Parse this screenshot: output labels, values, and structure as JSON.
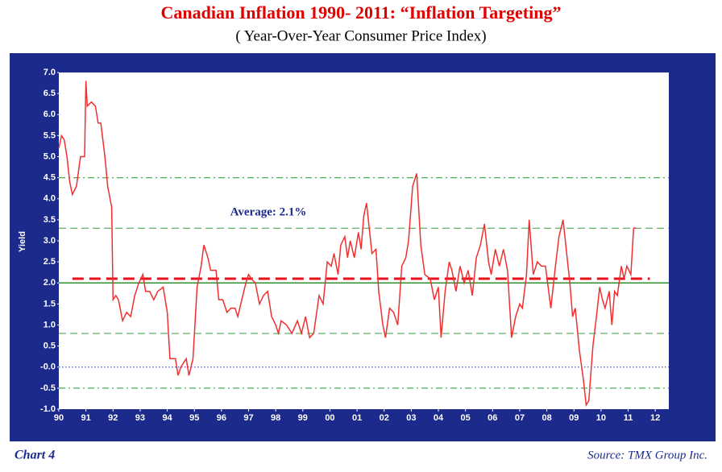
{
  "chart_data": {
    "type": "line",
    "title": "Canadian Inflation 1990- 2011: “Inflation Targeting”",
    "subtitle": "( Year-Over-Year Consumer Price Index)",
    "y_label": "Yield",
    "chart_label": "Chart 4",
    "source": "Source: TMX Group Inc.",
    "xlim": [
      1990,
      2012.5
    ],
    "ylim": [
      -1,
      7
    ],
    "xticks": [
      {
        "value": 1990,
        "label": "90"
      },
      {
        "value": 1991,
        "label": "91"
      },
      {
        "value": 1992,
        "label": "92"
      },
      {
        "value": 1993,
        "label": "93"
      },
      {
        "value": 1994,
        "label": "94"
      },
      {
        "value": 1995,
        "label": "95"
      },
      {
        "value": 1996,
        "label": "96"
      },
      {
        "value": 1997,
        "label": "97"
      },
      {
        "value": 1998,
        "label": "98"
      },
      {
        "value": 1999,
        "label": "99"
      },
      {
        "value": 2000,
        "label": "00"
      },
      {
        "value": 2001,
        "label": "01"
      },
      {
        "value": 2002,
        "label": "02"
      },
      {
        "value": 2003,
        "label": "03"
      },
      {
        "value": 2004,
        "label": "04"
      },
      {
        "value": 2005,
        "label": "05"
      },
      {
        "value": 2006,
        "label": "06"
      },
      {
        "value": 2007,
        "label": "07"
      },
      {
        "value": 2008,
        "label": "08"
      },
      {
        "value": 2009,
        "label": "09"
      },
      {
        "value": 2010,
        "label": "10"
      },
      {
        "value": 2011,
        "label": "11"
      },
      {
        "value": 2012,
        "label": "12"
      }
    ],
    "yticks": [
      {
        "value": 7,
        "label": "7.0"
      },
      {
        "value": 6.5,
        "label": "6.5"
      },
      {
        "value": 6,
        "label": "6.0"
      },
      {
        "value": 5.5,
        "label": "5.5"
      },
      {
        "value": 5,
        "label": "5.0"
      },
      {
        "value": 4.5,
        "label": "4.5"
      },
      {
        "value": 4,
        "label": "4.0"
      },
      {
        "value": 3.5,
        "label": "3.5"
      },
      {
        "value": 3,
        "label": "3.0"
      },
      {
        "value": 2.5,
        "label": "2.5"
      },
      {
        "value": 2,
        "label": "2.0"
      },
      {
        "value": 1.5,
        "label": "1.5"
      },
      {
        "value": 1,
        "label": "1.0"
      },
      {
        "value": 0.5,
        "label": "0.5"
      },
      {
        "value": 0,
        "label": "-0.0"
      },
      {
        "value": -0.5,
        "label": "-0.5"
      },
      {
        "value": -1,
        "label": "-1.0"
      }
    ],
    "reference_lines": [
      {
        "value": 4.5,
        "color": "#4caf50",
        "style": "dashdot"
      },
      {
        "value": 3.3,
        "color": "#4caf50",
        "style": "dashed"
      },
      {
        "value": 2.0,
        "color": "#2e8b2e",
        "style": "solid"
      },
      {
        "value": 0.8,
        "color": "#4caf50",
        "style": "dashed"
      },
      {
        "value": 0,
        "color": "#3355ff",
        "style": "dotted"
      },
      {
        "value": -0.5,
        "color": "#4caf50",
        "style": "dashdot"
      },
      {
        "value": 2.1,
        "color": "#e8101a",
        "style": "bigdash",
        "label": "Average: 2.1%",
        "xrange": [
          1990.5,
          2011.8
        ]
      }
    ],
    "x": [
      1990.0,
      1990.1,
      1990.2,
      1990.3,
      1990.4,
      1990.5,
      1990.65,
      1990.8,
      1990.95,
      1991.0,
      1991.05,
      1991.2,
      1991.35,
      1991.45,
      1991.55,
      1991.7,
      1991.8,
      1991.95,
      1992.0,
      1992.1,
      1992.2,
      1992.35,
      1992.5,
      1992.65,
      1992.8,
      1992.95,
      1993.1,
      1993.2,
      1993.35,
      1993.5,
      1993.65,
      1993.85,
      1994.0,
      1994.1,
      1994.3,
      1994.4,
      1994.5,
      1994.7,
      1994.8,
      1994.95,
      1995.1,
      1995.25,
      1995.35,
      1995.5,
      1995.6,
      1995.8,
      1995.9,
      1996.05,
      1996.2,
      1996.35,
      1996.5,
      1996.6,
      1996.75,
      1996.9,
      1997.0,
      1997.1,
      1997.25,
      1997.4,
      1997.55,
      1997.7,
      1997.85,
      1998.0,
      1998.1,
      1998.2,
      1998.4,
      1998.6,
      1998.8,
      1998.95,
      1999.1,
      1999.25,
      1999.4,
      1999.6,
      1999.75,
      1999.9,
      2000.05,
      2000.15,
      2000.3,
      2000.4,
      2000.55,
      2000.65,
      2000.75,
      2000.9,
      2001.05,
      2001.15,
      2001.25,
      2001.35,
      2001.45,
      2001.55,
      2001.7,
      2001.8,
      2001.95,
      2002.05,
      2002.2,
      2002.35,
      2002.5,
      2002.65,
      2002.8,
      2002.9,
      2003.05,
      2003.15,
      2003.2,
      2003.35,
      2003.5,
      2003.7,
      2003.85,
      2004.0,
      2004.1,
      2004.25,
      2004.4,
      2004.5,
      2004.65,
      2004.8,
      2004.95,
      2005.1,
      2005.25,
      2005.4,
      2005.55,
      2005.7,
      2005.85,
      2005.95,
      2006.1,
      2006.25,
      2006.4,
      2006.55,
      2006.7,
      2006.85,
      2007.0,
      2007.1,
      2007.25,
      2007.35,
      2007.5,
      2007.65,
      2007.8,
      2007.95,
      2008.15,
      2008.3,
      2008.45,
      2008.6,
      2008.75,
      2008.85,
      2008.95,
      2009.05,
      2009.2,
      2009.35,
      2009.45,
      2009.55,
      2009.7,
      2009.85,
      2009.95,
      2010.05,
      2010.15,
      2010.3,
      2010.4,
      2010.5,
      2010.6,
      2010.75,
      2010.85,
      2010.95,
      2011.1,
      2011.2,
      2011.3
    ],
    "series": [
      {
        "name": "CPI",
        "color": "#f03030",
        "values": [
          5.2,
          5.5,
          5.4,
          5.0,
          4.4,
          4.1,
          4.3,
          5.0,
          5.0,
          6.8,
          6.2,
          6.3,
          6.2,
          5.8,
          5.8,
          5.0,
          4.3,
          3.8,
          1.6,
          1.7,
          1.6,
          1.1,
          1.3,
          1.2,
          1.7,
          2.0,
          2.2,
          1.8,
          1.8,
          1.6,
          1.8,
          1.9,
          1.3,
          0.2,
          0.2,
          -0.2,
          0.0,
          0.2,
          -0.2,
          0.2,
          1.9,
          2.4,
          2.9,
          2.6,
          2.3,
          2.3,
          1.6,
          1.6,
          1.3,
          1.4,
          1.4,
          1.2,
          1.6,
          2.0,
          2.2,
          2.1,
          2.0,
          1.5,
          1.7,
          1.8,
          1.2,
          1.0,
          0.8,
          1.1,
          1.0,
          0.8,
          1.1,
          0.8,
          1.2,
          0.7,
          0.8,
          1.7,
          1.5,
          2.5,
          2.4,
          2.7,
          2.2,
          2.9,
          3.1,
          2.6,
          3.0,
          2.6,
          3.2,
          2.8,
          3.6,
          3.9,
          3.3,
          2.7,
          2.8,
          1.8,
          1.0,
          0.7,
          1.4,
          1.3,
          1.0,
          2.4,
          2.6,
          3.0,
          4.3,
          4.5,
          4.6,
          2.9,
          2.2,
          2.1,
          1.6,
          1.9,
          0.7,
          1.8,
          2.5,
          2.3,
          1.8,
          2.4,
          2.0,
          2.3,
          1.7,
          2.6,
          2.9,
          3.4,
          2.5,
          2.2,
          2.8,
          2.4,
          2.8,
          2.3,
          0.7,
          1.2,
          1.5,
          1.4,
          2.2,
          3.5,
          2.2,
          2.5,
          2.4,
          2.4,
          1.4,
          2.3,
          3.1,
          3.5,
          2.6,
          2.0,
          1.2,
          1.4,
          0.4,
          -0.3,
          -0.9,
          -0.8,
          0.5,
          1.3,
          1.9,
          1.6,
          1.4,
          1.8,
          1.0,
          1.8,
          1.7,
          2.4,
          2.1,
          2.4,
          2.2,
          3.3,
          3.3
        ]
      }
    ]
  }
}
